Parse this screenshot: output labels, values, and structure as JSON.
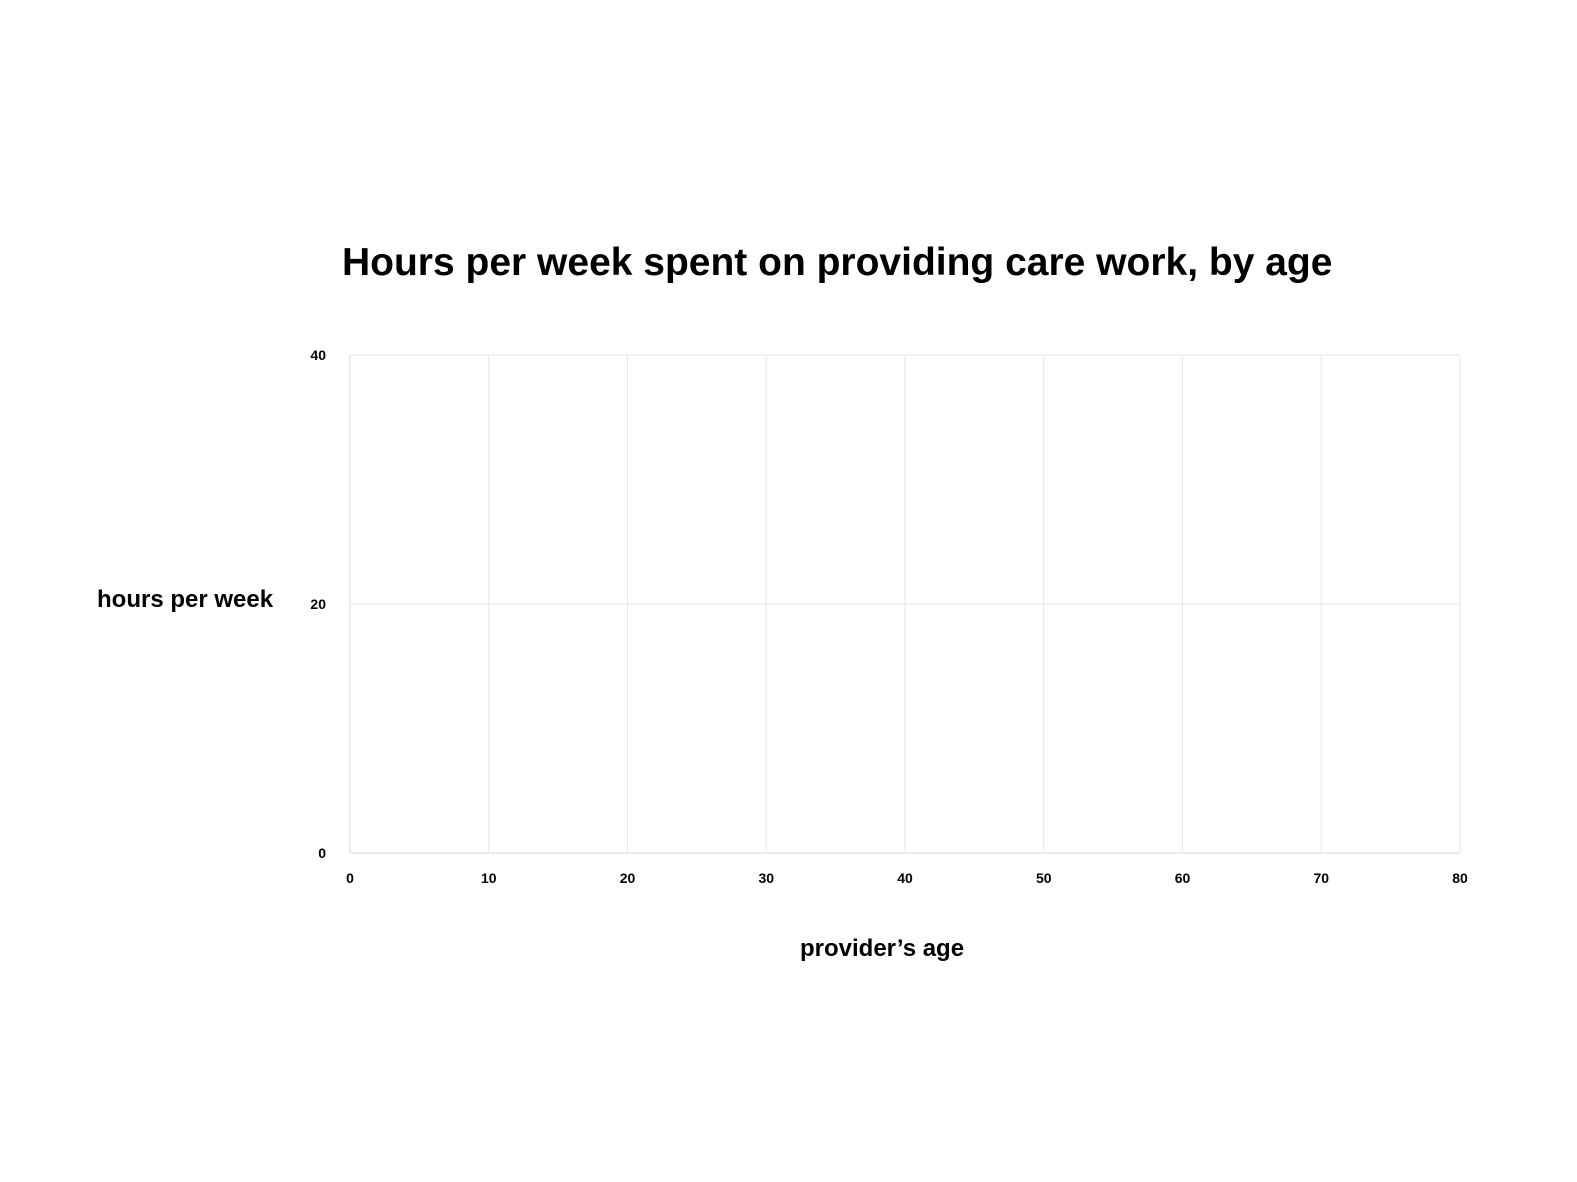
{
  "chart_data": {
    "type": "scatter",
    "title": "Hours per week spent on providing care work, by age",
    "xlabel": "provider’s age",
    "ylabel": "hours per week",
    "xlim": [
      0,
      80
    ],
    "ylim": [
      0,
      40
    ],
    "x_ticks": [
      "0",
      "10",
      "20",
      "30",
      "40",
      "50",
      "60",
      "70",
      "80"
    ],
    "y_ticks": [
      "0",
      "20",
      "40"
    ],
    "series": [],
    "grid": true,
    "legend": "none"
  },
  "colors": {
    "gridline": "#e6e6e6",
    "axis_line": "#d9d9d9",
    "text": "#000000",
    "background": "#ffffff"
  }
}
